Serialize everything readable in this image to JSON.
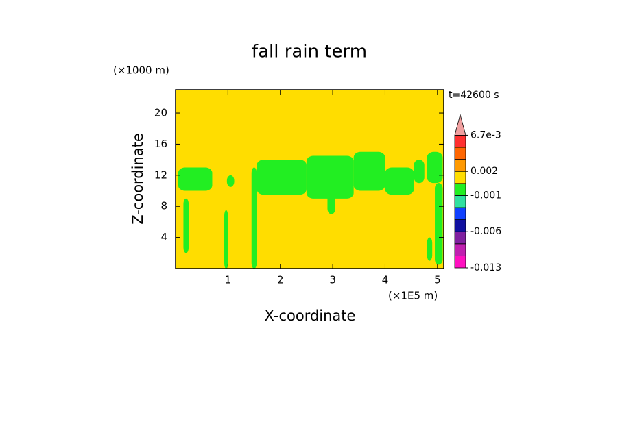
{
  "chart_data": {
    "type": "contour",
    "title": "fall rain term",
    "ylabel_unit": "(×1000 m)",
    "xlabel_unit": "(×1E5 m)",
    "time_label": "t=42600 s",
    "xlabel": "X-coordinate",
    "ylabel": "Z-coordinate",
    "xlim": [
      0,
      5.12
    ],
    "ylim": [
      0,
      23
    ],
    "xticks": [
      1,
      2,
      3,
      4,
      5
    ],
    "yticks": [
      4,
      8,
      12,
      16,
      20
    ],
    "background_color": "#ffdd00",
    "patch_color": "#22ee22",
    "patches": [
      {
        "x": [
          0.05,
          0.7
        ],
        "z": [
          10,
          13
        ]
      },
      {
        "x": [
          0.15,
          0.25
        ],
        "z": [
          2,
          9
        ]
      },
      {
        "x": [
          0.98,
          1.12
        ],
        "z": [
          10.5,
          12
        ]
      },
      {
        "x": [
          0.93,
          1.0
        ],
        "z": [
          0,
          7.5
        ]
      },
      {
        "x": [
          1.45,
          1.55
        ],
        "z": [
          0,
          13
        ]
      },
      {
        "x": [
          1.55,
          2.5
        ],
        "z": [
          9.5,
          14
        ]
      },
      {
        "x": [
          2.5,
          3.4
        ],
        "z": [
          9,
          14.5
        ]
      },
      {
        "x": [
          2.9,
          3.05
        ],
        "z": [
          7,
          10
        ]
      },
      {
        "x": [
          3.4,
          4.0
        ],
        "z": [
          10,
          15
        ]
      },
      {
        "x": [
          4.0,
          4.55
        ],
        "z": [
          9.5,
          13
        ]
      },
      {
        "x": [
          4.55,
          4.75
        ],
        "z": [
          11,
          14
        ]
      },
      {
        "x": [
          4.8,
          5.1
        ],
        "z": [
          11,
          15
        ]
      },
      {
        "x": [
          4.95,
          5.1
        ],
        "z": [
          0.5,
          11
        ]
      },
      {
        "x": [
          4.8,
          4.9
        ],
        "z": [
          1,
          4
        ]
      }
    ],
    "colorbar": {
      "levels": [
        -0.013,
        -0.011,
        -0.009,
        -0.006,
        -0.004,
        -0.002,
        -0.001,
        0,
        0.002,
        0.004,
        0.0055,
        0.0067
      ],
      "colors": [
        "#ff10c0",
        "#c020b0",
        "#8020a0",
        "#1010a0",
        "#1040ff",
        "#30e0a0",
        "#22ee22",
        "#ffdd00",
        "#ff9900",
        "#ff6600",
        "#ff3030"
      ],
      "over_color": "#f0a0a0",
      "ticks": [
        {
          "value": 0.0067,
          "label": "6.7e-3"
        },
        0.002,
        -0.001,
        -0.006,
        -0.013
      ]
    }
  }
}
